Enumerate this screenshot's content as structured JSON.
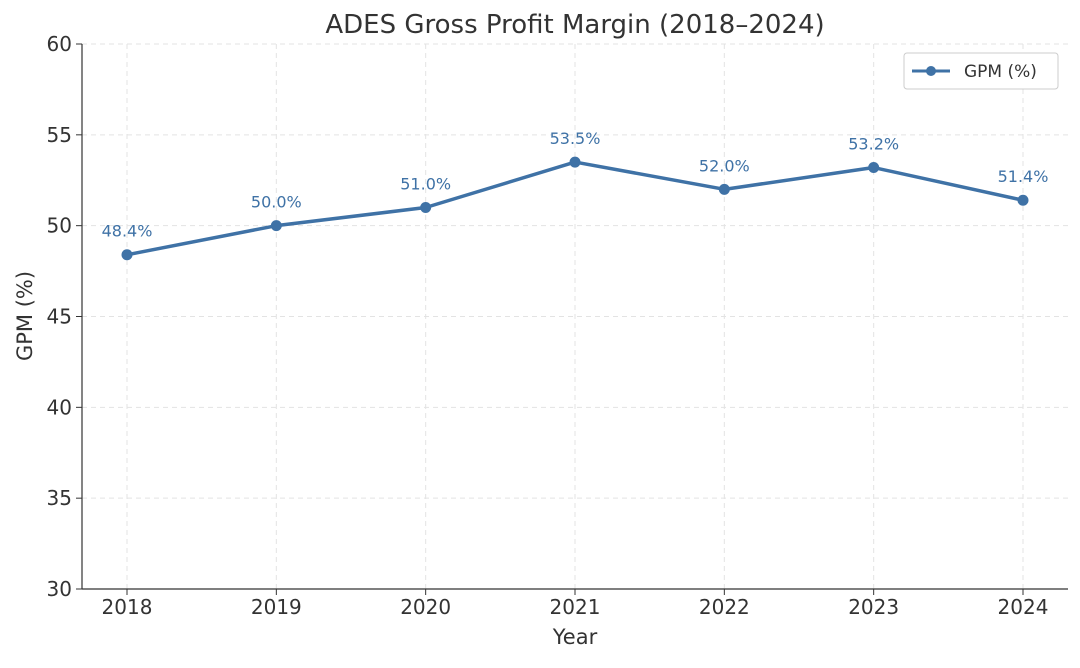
{
  "chart_data": {
    "type": "line",
    "title": "ADES Gross Profit Margin (2018–2024)",
    "xlabel": "Year",
    "ylabel": "GPM (%)",
    "ylim": [
      30,
      60
    ],
    "yticks": [
      "30",
      "35",
      "40",
      "45",
      "50",
      "55",
      "60"
    ],
    "categories": [
      "2018",
      "2019",
      "2020",
      "2021",
      "2022",
      "2023",
      "2024"
    ],
    "series": [
      {
        "name": "GPM (%)",
        "values": [
          48.4,
          50.0,
          51.0,
          53.5,
          52.0,
          53.2,
          51.4
        ],
        "labels": [
          "48.4%",
          "50.0%",
          "51.0%",
          "53.5%",
          "52.0%",
          "53.2%",
          "51.4%"
        ],
        "color": "#3f72a6"
      }
    ],
    "grid": true,
    "legend": "top-right"
  }
}
